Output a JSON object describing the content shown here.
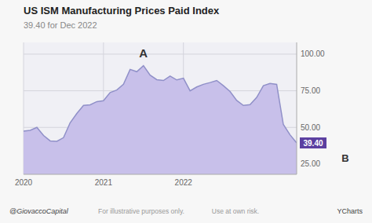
{
  "chart_data": {
    "type": "area",
    "title": "US ISM Manufacturing Prices Paid Index",
    "subtitle": "39.40 for Dec 2022",
    "categories": [
      "2020",
      null,
      null,
      null,
      null,
      null,
      null,
      null,
      null,
      null,
      null,
      null,
      "2021",
      null,
      null,
      null,
      null,
      null,
      null,
      null,
      null,
      null,
      null,
      null,
      "2022",
      null,
      null,
      null,
      null,
      null,
      null,
      null,
      null,
      null,
      null,
      null,
      null,
      null,
      null,
      null,
      null,
      null
    ],
    "values": [
      47.5,
      48.0,
      50.0,
      44.5,
      40.8,
      40.5,
      43.0,
      53.2,
      59.5,
      65.0,
      65.4,
      67.6,
      68.2,
      73.8,
      75.5,
      79.4,
      89.6,
      88.0,
      92.1,
      85.7,
      82.6,
      82.0,
      85.0,
      82.4,
      83.6,
      75.0,
      77.6,
      79.4,
      80.6,
      82.0,
      78.5,
      74.5,
      68.4,
      65.0,
      65.5,
      70.5,
      78.5,
      80.0,
      79.4,
      52.0,
      45.0,
      39.4
    ],
    "color": "#9090c8",
    "ylim": [
      18,
      108
    ],
    "yticks": [
      {
        "value": 25,
        "label": "25.00"
      },
      {
        "value": 50,
        "label": "50.00"
      },
      {
        "value": 75,
        "label": "75.00"
      },
      {
        "value": 100,
        "label": "100.00"
      }
    ],
    "grid": true,
    "annotations": [
      {
        "text": "A",
        "x": 18,
        "y": 97
      },
      {
        "text": "39.40",
        "color": "#5b3fa0"
      },
      {
        "text": "B"
      }
    ],
    "footer": [
      "@GiovaccoCapital",
      "For illustrative purposes only.",
      "Use at own risk.",
      "YCharts"
    ]
  }
}
